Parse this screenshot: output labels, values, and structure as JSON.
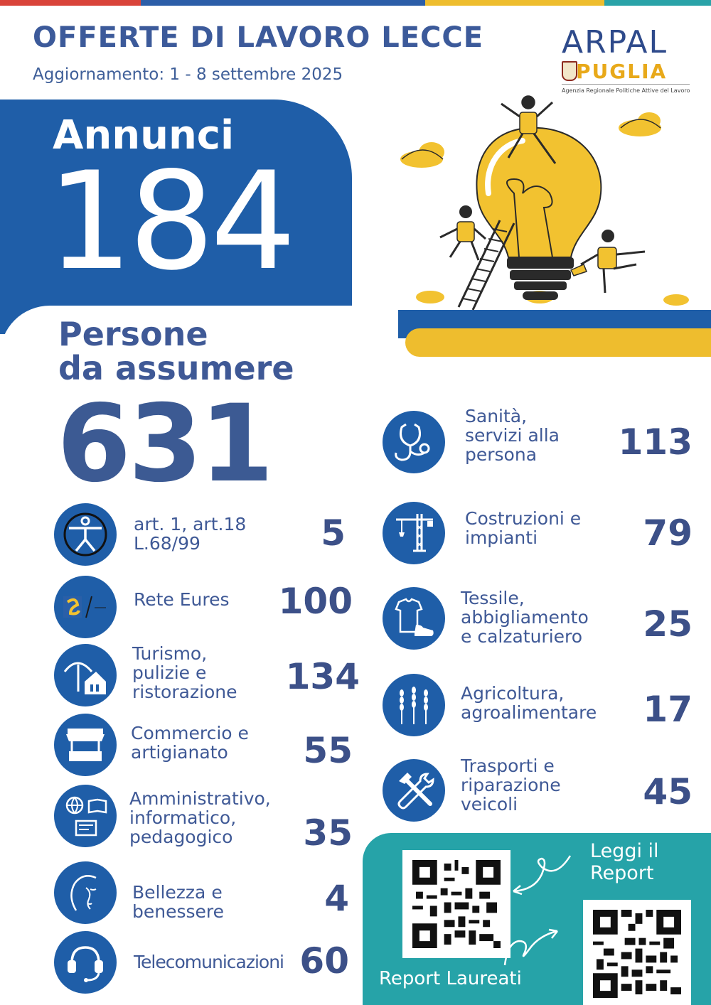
{
  "colors": {
    "primary_blue": "#1f5ea8",
    "navy_text": "#3c5a93",
    "yellow": "#eebd2e",
    "teal": "#26a3a8",
    "stripe": [
      "#d9443a",
      "#2c5ea8",
      "#eebd2e",
      "#2aa3a8"
    ]
  },
  "header": {
    "title": "OFFERTE DI LAVORO LECCE",
    "subtitle": "Aggiornamento: 1 - 8 settembre 2025"
  },
  "logo": {
    "wordmark": "ARPAL",
    "region": "PUGLIA",
    "tagline": "Agenzia Regionale Politiche Attive del Lavoro"
  },
  "summary": {
    "annunci_label": "Annunci",
    "annunci_value": "184",
    "persone_label_line1": "Persone",
    "persone_label_line2": "da assumere",
    "persone_value": "631"
  },
  "sectors_left": [
    {
      "icon": "accessibility-icon",
      "lines": [
        "art. 1, art.18",
        "L.68/99"
      ],
      "value": "5"
    },
    {
      "icon": "eures-logo-icon",
      "lines": [
        "Rete Eures"
      ],
      "value": "100"
    },
    {
      "icon": "umbrella-house-icon",
      "lines": [
        "Turismo,",
        "pulizie e",
        "ristorazione"
      ],
      "value": "134"
    },
    {
      "icon": "market-stall-icon",
      "lines": [
        "Commercio e",
        "artigianato"
      ],
      "value": "55"
    },
    {
      "icon": "globe-book-id-icon",
      "lines": [
        "Amministrativo,",
        "informatico,",
        "pedagogico"
      ],
      "value": "35"
    },
    {
      "icon": "woman-face-icon",
      "lines": [
        "Bellezza e",
        "benessere"
      ],
      "value": "4"
    },
    {
      "icon": "headset-icon",
      "lines": [
        "Telecomunicazioni"
      ],
      "value": "60"
    }
  ],
  "sectors_right": [
    {
      "icon": "stethoscope-icon",
      "lines": [
        "Sanità,",
        "servizi alla",
        "persona"
      ],
      "value": "113"
    },
    {
      "icon": "crane-icon",
      "lines": [
        "Costruzioni e",
        "impianti"
      ],
      "value": "79"
    },
    {
      "icon": "tshirt-shoe-icon",
      "lines": [
        "Tessile,",
        "abbigliamento",
        "e calzaturiero"
      ],
      "value": "25"
    },
    {
      "icon": "wheat-icon",
      "lines": [
        "Agricoltura,",
        "agroalimentare"
      ],
      "value": "17"
    },
    {
      "icon": "wrench-hammer-icon",
      "lines": [
        "Trasporti e",
        "riparazione",
        "veicoli"
      ],
      "value": "45"
    }
  ],
  "reports": {
    "read_line1": "Leggi il",
    "read_line2": "Report",
    "graduates": "Report Laureati"
  }
}
